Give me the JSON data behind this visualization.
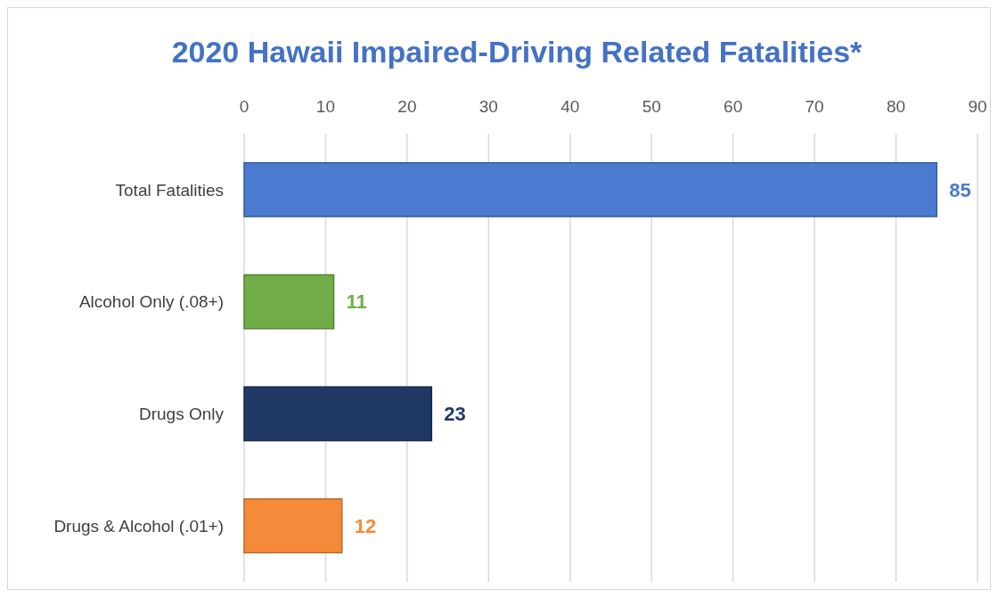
{
  "chart_data": {
    "type": "bar",
    "orientation": "horizontal",
    "title": "2020 Hawaii Impaired-Driving Related Fatalities*",
    "categories": [
      "Total Fatalities",
      "Alcohol Only (.08+)",
      "Drugs Only",
      "Drugs & Alcohol (.01+)"
    ],
    "values": [
      85,
      11,
      23,
      12
    ],
    "colors": [
      "#4a7bd0",
      "#70ad47",
      "#203864",
      "#f58b3a"
    ],
    "xlim": [
      0,
      90
    ],
    "xticks": [
      0,
      10,
      20,
      30,
      40,
      50,
      60,
      70,
      80,
      90
    ],
    "grid": "x",
    "data_labels": true
  }
}
